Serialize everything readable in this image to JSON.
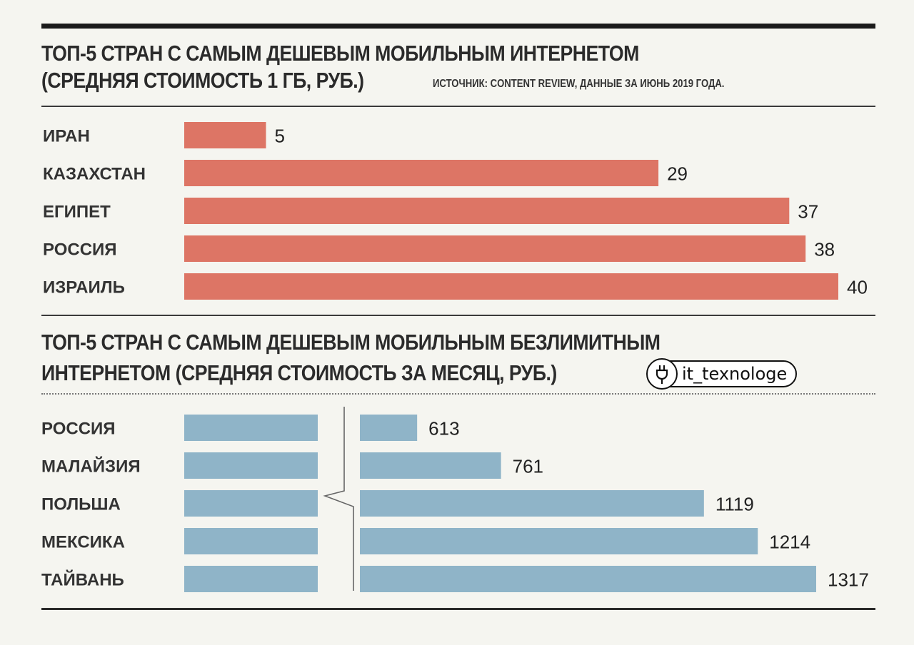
{
  "watermark": {
    "text": "it_texnologe",
    "icon": "plug-icon"
  },
  "charts": {
    "top": {
      "title_line1": "ТОП-5 СТРАН С САМЫМ ДЕШЕВЫМ МОБИЛЬНЫМ ИНТЕРНЕТОМ",
      "title_line2": "(СРЕДНЯЯ СТОИМОСТЬ 1 ГБ, РУБ.)",
      "source": "ИСТОЧНИК: CONTENT REVIEW, ДАННЫЕ ЗА ИЮНЬ 2019 ГОДА."
    },
    "bottom": {
      "title_line1": "ТОП-5 СТРАН С САМЫМ ДЕШЕВЫМ МОБИЛЬНЫМ БЕЗЛИМИТНЫМ",
      "title_line2": "ИНТЕРНЕТОМ (СРЕДНЯЯ СТОИМОСТЬ ЗА МЕСЯЦ, РУБ.)"
    }
  },
  "chart_data": [
    {
      "type": "bar",
      "orientation": "horizontal",
      "title": "ТОП-5 СТРАН С САМЫМ ДЕШЕВЫМ МОБИЛЬНЫМ ИНТЕРНЕТОМ (СРЕДНЯЯ СТОИМОСТЬ 1 ГБ, РУБ.)",
      "categories": [
        "ИРАН",
        "КАЗАХСТАН",
        "ЕГИПЕТ",
        "РОССИЯ",
        "ИЗРАИЛЬ"
      ],
      "values": [
        5,
        29,
        37,
        38,
        40
      ],
      "value_labels": [
        "5",
        "29",
        "37",
        "38",
        "40"
      ],
      "color": "#dd7565",
      "xlim": [
        0,
        40
      ],
      "grid": false
    },
    {
      "type": "bar",
      "orientation": "horizontal",
      "title": "ТОП-5 СТРАН С САМЫМ ДЕШЕВЫМ МОБИЛЬНЫМ БЕЗЛИМИТНЫМ ИНТЕРНЕТОМ (СРЕДНЯЯ СТОИМОСТЬ ЗА МЕСЯЦ, РУБ.)",
      "categories": [
        "РОССИЯ",
        "МАЛАЙЗИЯ",
        "ПОЛЬША",
        "МЕКСИКА",
        "ТАЙВАНЬ"
      ],
      "values": [
        613,
        761,
        1119,
        1214,
        1317
      ],
      "value_labels": [
        "613",
        "761",
        "1119",
        "1214",
        "1317"
      ],
      "color": "#8fb4c8",
      "broken_axis": true,
      "grid": false
    }
  ]
}
